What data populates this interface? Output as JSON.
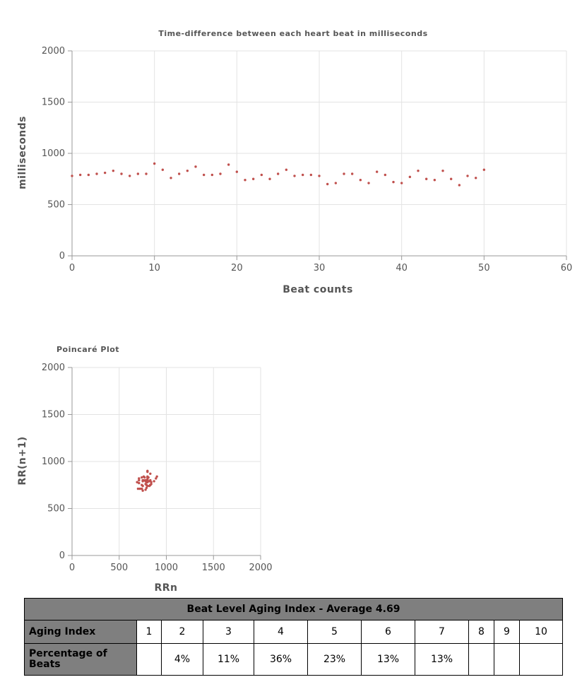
{
  "chart_data": [
    {
      "type": "scatter",
      "title": "Time-difference between each heart beat in milliseconds",
      "xlabel": "Beat counts",
      "ylabel": "milliseconds",
      "xlim": [
        0,
        60
      ],
      "ylim": [
        0,
        2000
      ],
      "xticks": [
        0,
        10,
        20,
        30,
        40,
        50,
        60
      ],
      "yticks": [
        0,
        500,
        1000,
        1500,
        2000
      ],
      "grid": true,
      "point_color": "#c0504d",
      "x": [
        0,
        1,
        2,
        3,
        4,
        5,
        6,
        7,
        8,
        9,
        10,
        11,
        12,
        13,
        14,
        15,
        16,
        17,
        18,
        19,
        20,
        21,
        22,
        23,
        24,
        25,
        26,
        27,
        28,
        29,
        30,
        31,
        32,
        33,
        34,
        35,
        36,
        37,
        38,
        39,
        40,
        41,
        42,
        43,
        44,
        45,
        46,
        47,
        48,
        49,
        50
      ],
      "y": [
        780,
        790,
        790,
        800,
        810,
        830,
        800,
        780,
        800,
        800,
        900,
        840,
        760,
        800,
        830,
        870,
        790,
        790,
        800,
        890,
        820,
        740,
        750,
        790,
        750,
        800,
        840,
        780,
        790,
        790,
        780,
        700,
        710,
        800,
        800,
        740,
        710,
        820,
        790,
        720,
        710,
        770,
        830,
        750,
        740,
        830,
        750,
        690,
        780,
        760,
        840
      ]
    },
    {
      "type": "scatter",
      "title": "Poincaré Plot",
      "xlabel": "RRn",
      "ylabel": "RR(n+1)",
      "xlim": [
        0,
        2000
      ],
      "ylim": [
        0,
        2000
      ],
      "xticks": [
        0,
        500,
        1000,
        1500,
        2000
      ],
      "yticks": [
        0,
        500,
        1000,
        1500,
        2000
      ],
      "grid": true,
      "point_color": "#c0504d",
      "x": [
        780,
        790,
        790,
        800,
        810,
        830,
        800,
        780,
        800,
        800,
        900,
        840,
        760,
        800,
        830,
        870,
        790,
        790,
        800,
        890,
        820,
        740,
        750,
        790,
        750,
        800,
        840,
        780,
        790,
        790,
        780,
        700,
        710,
        800,
        800,
        740,
        710,
        820,
        790,
        720,
        710,
        770,
        830,
        750,
        740,
        830,
        750,
        690,
        780,
        760
      ],
      "y": [
        790,
        790,
        800,
        810,
        830,
        800,
        780,
        800,
        800,
        900,
        840,
        760,
        800,
        830,
        870,
        790,
        790,
        800,
        890,
        820,
        740,
        750,
        790,
        750,
        800,
        840,
        780,
        790,
        790,
        780,
        700,
        710,
        800,
        800,
        740,
        710,
        820,
        790,
        720,
        710,
        770,
        830,
        750,
        740,
        830,
        750,
        690,
        780,
        760,
        840
      ]
    }
  ],
  "aging_table": {
    "title": "Beat Level Aging Index - Average 4.69",
    "index_label": "Aging Index",
    "indexes": [
      "1",
      "2",
      "3",
      "4",
      "5",
      "6",
      "7",
      "8",
      "9",
      "10"
    ],
    "percent_label": "Percentage of Beats",
    "percentages": [
      "",
      "4%",
      "11%",
      "36%",
      "23%",
      "13%",
      "13%",
      "",
      "",
      ""
    ]
  }
}
